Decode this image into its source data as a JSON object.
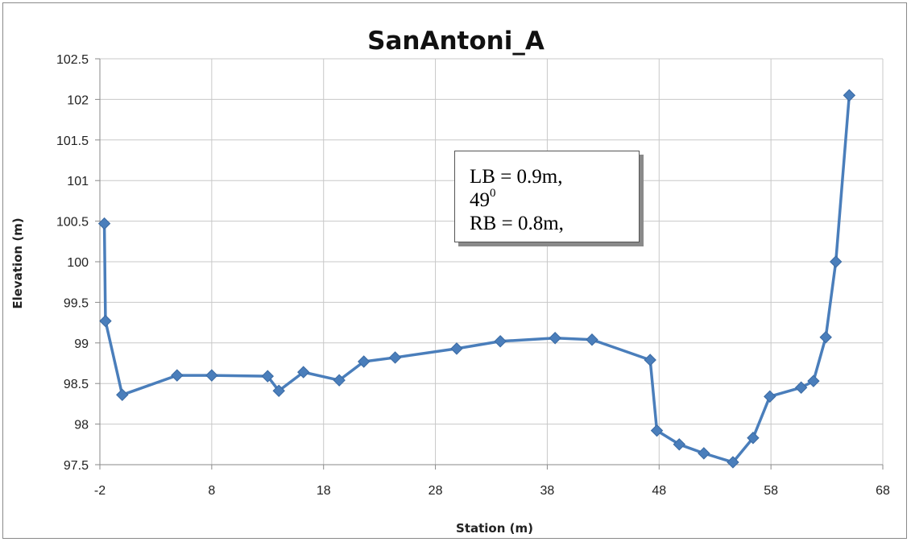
{
  "chart_data": {
    "type": "line",
    "title": "SanAntoni_A",
    "xlabel": "Station (m)",
    "ylabel": "Elevation (m)",
    "xlim": [
      -2,
      68
    ],
    "ylim": [
      97.5,
      102.5
    ],
    "x_ticks": [
      "-2",
      "8",
      "18",
      "28",
      "38",
      "48",
      "58",
      "68"
    ],
    "y_ticks": [
      "97.5",
      "98",
      "98.5",
      "99",
      "99.5",
      "100",
      "100.5",
      "101",
      "101.5",
      "102",
      "102.5"
    ],
    "grid": true,
    "legend": "none",
    "marker": "diamond",
    "line_color": "#4a7ebb",
    "series": [
      {
        "x": [
          -1.6,
          -1.5,
          0.0,
          4.9,
          8.0,
          13.0,
          14.0,
          16.2,
          19.4,
          21.6,
          24.4,
          29.9,
          33.8,
          38.7,
          42.0,
          47.2,
          47.8,
          49.8,
          52.0,
          54.6,
          56.4,
          57.9,
          60.7,
          61.8,
          62.9,
          63.8,
          65.0
        ],
        "y": [
          100.47,
          99.27,
          98.36,
          98.6,
          98.6,
          98.59,
          98.41,
          98.64,
          98.54,
          98.77,
          98.82,
          98.93,
          99.02,
          99.06,
          99.04,
          98.79,
          97.92,
          97.75,
          97.64,
          97.53,
          97.83,
          98.34,
          98.45,
          98.53,
          99.07,
          100.0,
          102.05
        ]
      }
    ]
  },
  "annotation": {
    "line1": "LB = 0.9m,",
    "line2_base": "49",
    "line2_sup": "0",
    "line3": "RB = 0.8m,"
  }
}
